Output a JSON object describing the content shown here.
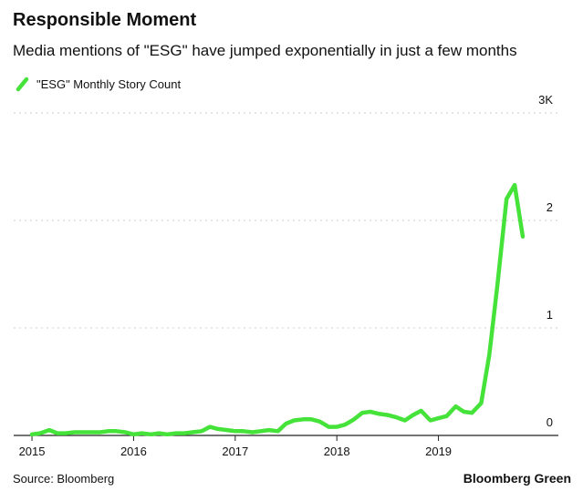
{
  "chart_data": {
    "type": "line",
    "title": "Responsible Moment",
    "subtitle": "Media mentions of \"ESG\" have jumped exponentially in just a few months",
    "source": "Source: Bloomberg",
    "brand": "Bloomberg Green",
    "x": [
      2015,
      2015.08,
      2015.17,
      2015.25,
      2015.33,
      2015.42,
      2015.5,
      2015.58,
      2015.67,
      2015.75,
      2015.83,
      2015.92,
      2016,
      2016.08,
      2016.17,
      2016.25,
      2016.33,
      2016.42,
      2016.5,
      2016.58,
      2016.67,
      2016.75,
      2016.83,
      2016.92,
      2017,
      2017.08,
      2017.17,
      2017.25,
      2017.33,
      2017.42,
      2017.5,
      2017.58,
      2017.67,
      2017.75,
      2017.83,
      2017.92,
      2018,
      2018.08,
      2018.17,
      2018.25,
      2018.33,
      2018.42,
      2018.5,
      2018.58,
      2018.67,
      2018.75,
      2018.83,
      2018.92,
      2019,
      2019.08,
      2019.17,
      2019.25,
      2019.33,
      2019.42,
      2019.5,
      2019.58,
      2019.67,
      2019.75,
      2019.83
    ],
    "series": [
      {
        "name": "\"ESG\" Monthly Story Count",
        "color": "#45e33a",
        "values": [
          0.01,
          0.02,
          0.05,
          0.02,
          0.02,
          0.03,
          0.03,
          0.03,
          0.03,
          0.04,
          0.04,
          0.03,
          0.01,
          0.02,
          0.01,
          0.02,
          0.01,
          0.02,
          0.02,
          0.03,
          0.04,
          0.08,
          0.06,
          0.05,
          0.04,
          0.04,
          0.03,
          0.04,
          0.05,
          0.04,
          0.11,
          0.14,
          0.15,
          0.15,
          0.13,
          0.08,
          0.08,
          0.1,
          0.15,
          0.21,
          0.22,
          0.2,
          0.19,
          0.17,
          0.14,
          0.19,
          0.23,
          0.14,
          0.16,
          0.18,
          0.27,
          0.22,
          0.21,
          0.3,
          0.75,
          1.4,
          2.2,
          2.33,
          1.85
        ]
      }
    ],
    "xlim": [
      2014.82,
      2020.18
    ],
    "xticks": [
      2015,
      2016,
      2017,
      2018,
      2019
    ],
    "ylim": [
      0,
      3
    ],
    "yticks": [
      0,
      1,
      2,
      {
        "value": 3,
        "label": "3K"
      }
    ],
    "grid": true
  }
}
